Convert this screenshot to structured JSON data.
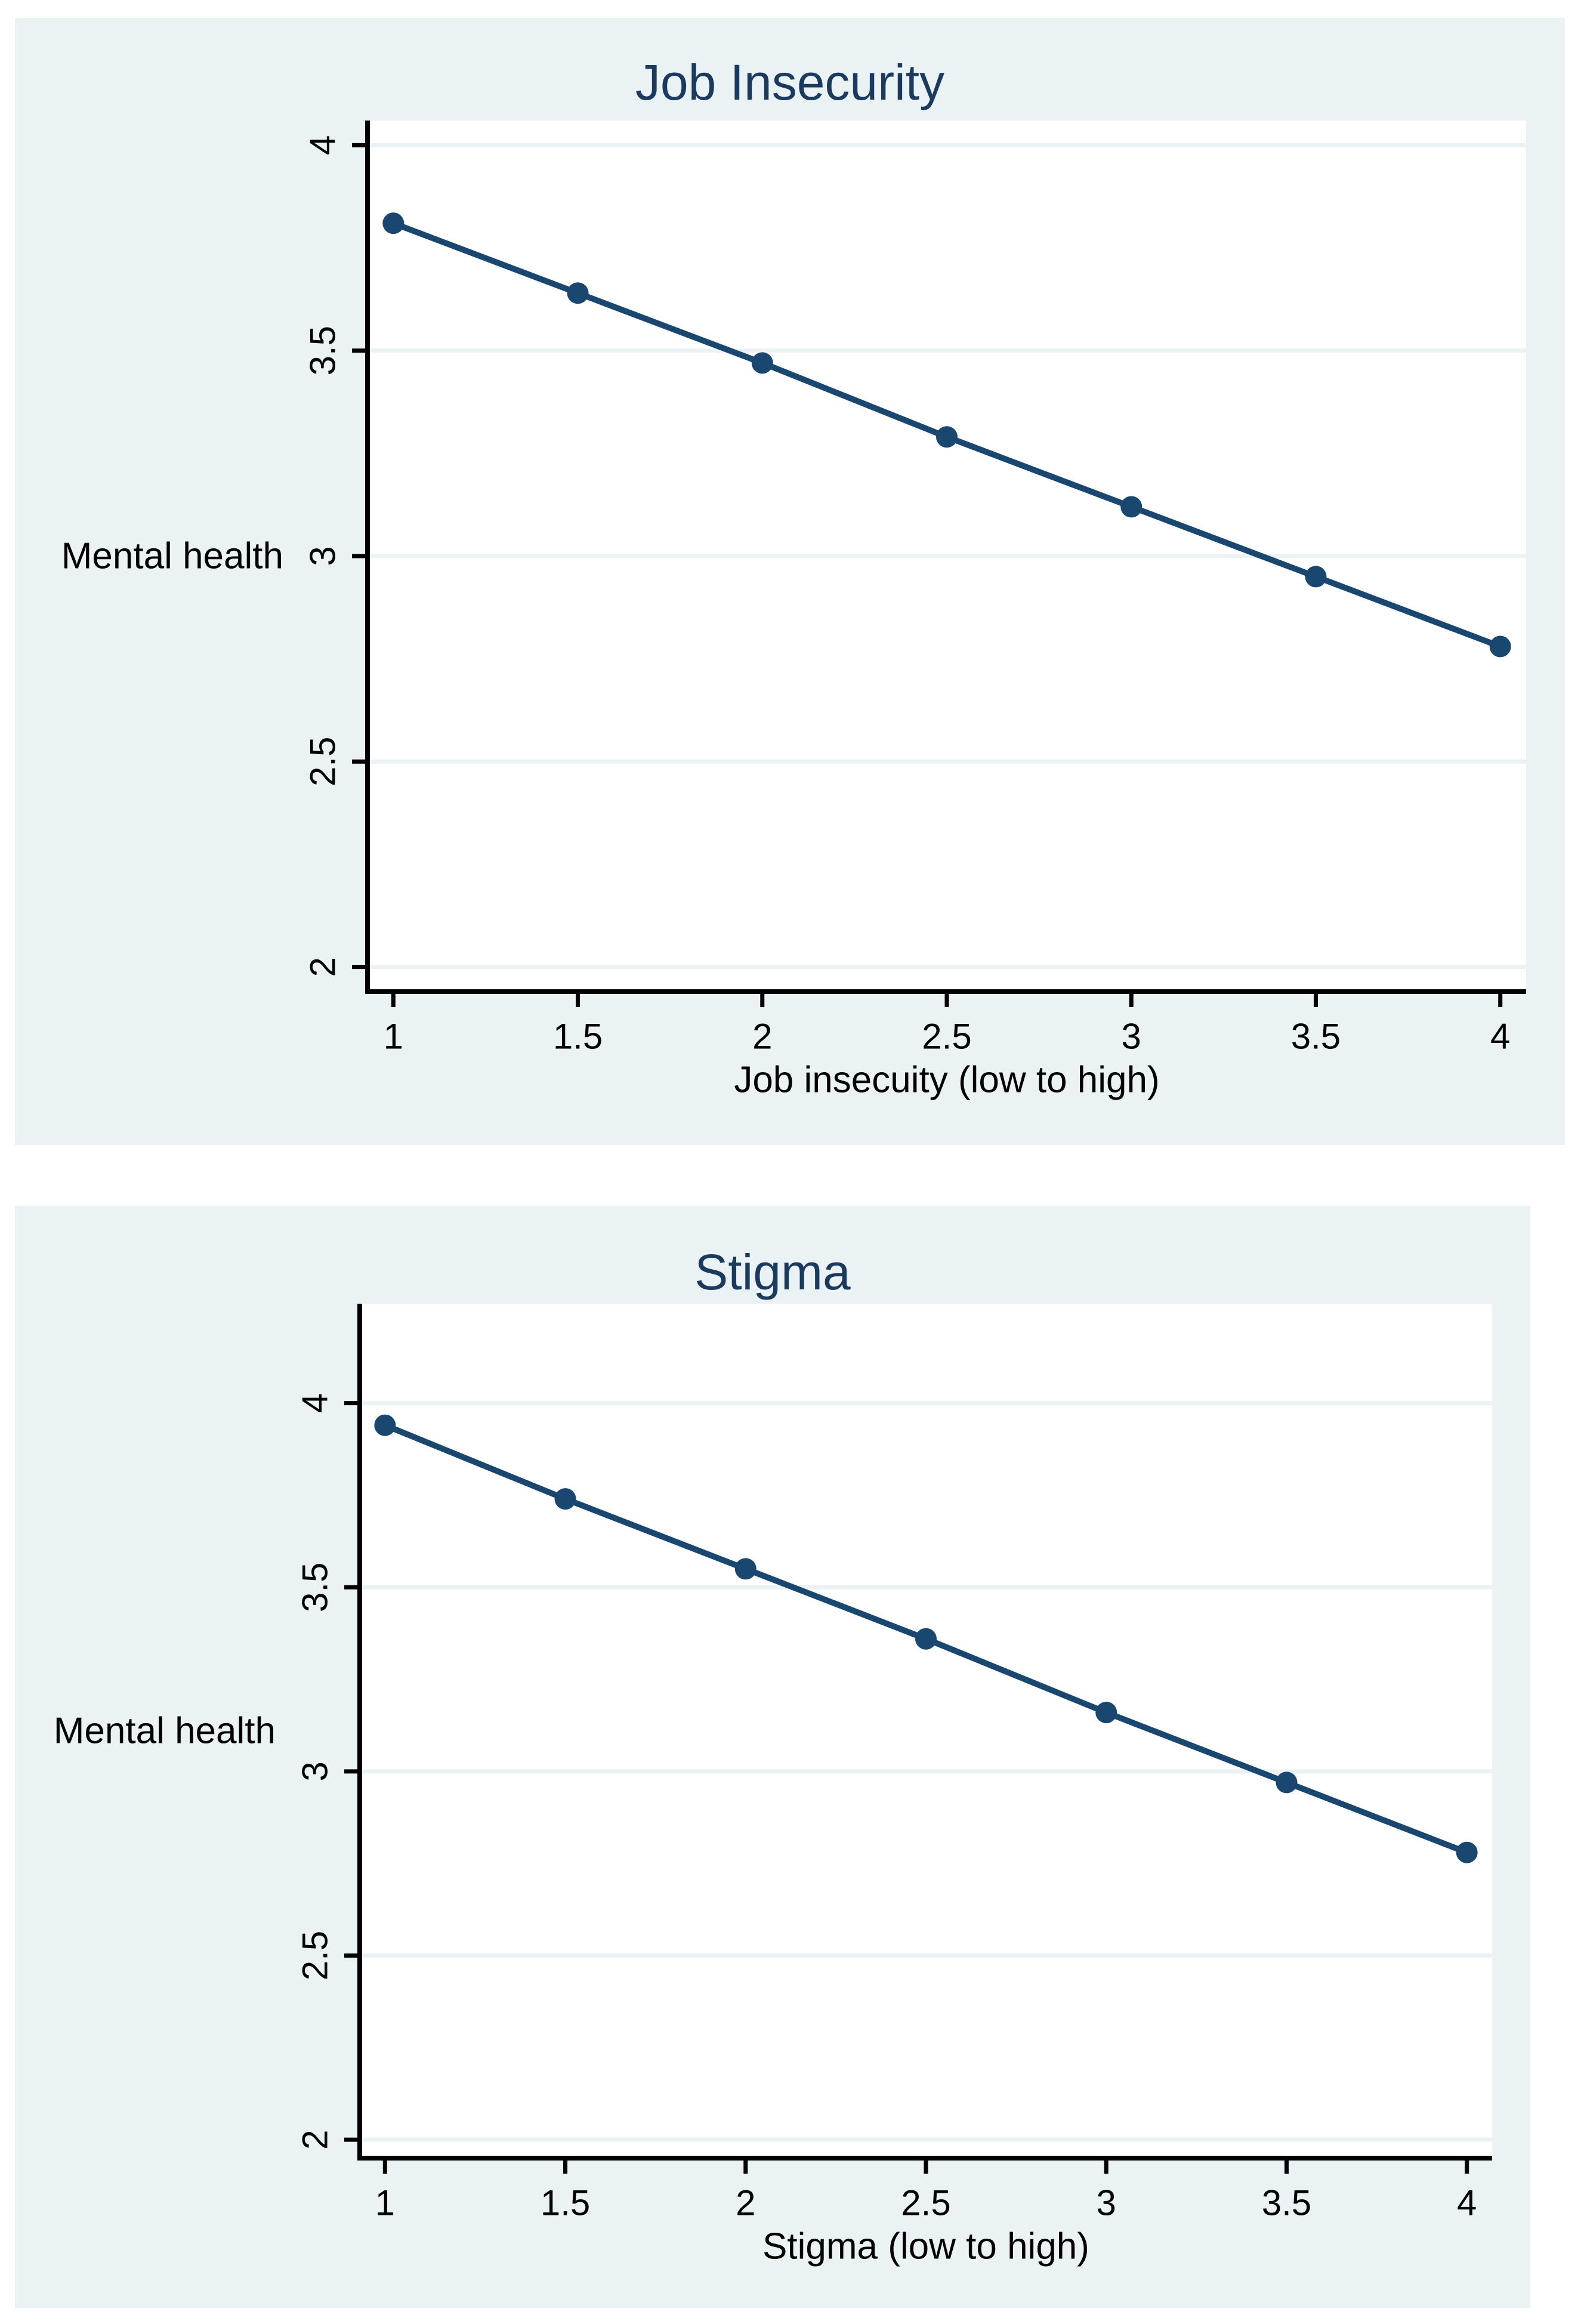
{
  "colors": {
    "panel_background": "#eaf2f3",
    "plot_background": "#ffffff",
    "gridline": "#eaf2f3",
    "axis": "#000000",
    "title": "#1b3a5f",
    "series": "#1a476f"
  },
  "chart_data": [
    {
      "type": "line",
      "title": "Job Insecurity",
      "xlabel": "Job insecuity (low to high)",
      "ylabel": "Mental health",
      "x": [
        1,
        1.5,
        2,
        2.5,
        3,
        3.5,
        4
      ],
      "y": [
        3.81,
        3.64,
        3.47,
        3.29,
        3.12,
        2.95,
        2.78
      ],
      "xticks": [
        {
          "label": "1",
          "v": 1
        },
        {
          "label": "1.5",
          "v": 1.5
        },
        {
          "label": "2",
          "v": 2
        },
        {
          "label": "2.5",
          "v": 2.5
        },
        {
          "label": "3",
          "v": 3
        },
        {
          "label": "3.5",
          "v": 3.5
        },
        {
          "label": "4",
          "v": 4
        }
      ],
      "yticks": [
        {
          "label": "4",
          "v": 4
        },
        {
          "label": "3.5",
          "v": 3.5
        },
        {
          "label": "3",
          "v": 3
        },
        {
          "label": "2.5",
          "v": 2.5
        },
        {
          "label": "2",
          "v": 2
        }
      ],
      "xlim": [
        0.93,
        4.07
      ],
      "ylim": [
        1.94,
        4.06
      ],
      "grid": true,
      "legend": "none",
      "line_color": "#1a476f",
      "marker": "circle"
    },
    {
      "type": "line",
      "title": "Stigma",
      "xlabel": "Stigma (low to high)",
      "ylabel": "Mental health",
      "x": [
        1,
        1.5,
        2,
        2.5,
        3,
        3.5,
        4
      ],
      "y": [
        3.94,
        3.74,
        3.55,
        3.36,
        3.16,
        2.97,
        2.78
      ],
      "xticks": [
        {
          "label": "1",
          "v": 1
        },
        {
          "label": "1.5",
          "v": 1.5
        },
        {
          "label": "2",
          "v": 2
        },
        {
          "label": "2.5",
          "v": 2.5
        },
        {
          "label": "3",
          "v": 3
        },
        {
          "label": "3.5",
          "v": 3.5
        },
        {
          "label": "4",
          "v": 4
        }
      ],
      "yticks": [
        {
          "label": "4",
          "v": 4
        },
        {
          "label": "3.5",
          "v": 3.5
        },
        {
          "label": "3",
          "v": 3
        },
        {
          "label": "2.5",
          "v": 2.5
        },
        {
          "label": "2",
          "v": 2
        }
      ],
      "xlim": [
        0.93,
        4.07
      ],
      "ylim": [
        1.95,
        4.27
      ],
      "grid": true,
      "legend": "none",
      "line_color": "#1a476f",
      "marker": "circle"
    }
  ]
}
